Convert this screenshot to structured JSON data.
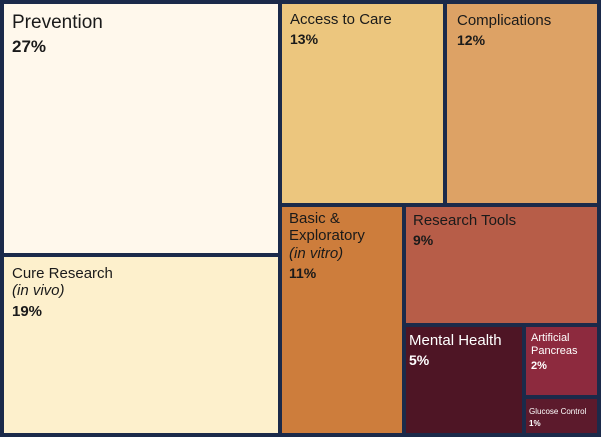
{
  "chart_data": {
    "type": "treemap",
    "title": "",
    "items": [
      {
        "name": "Prevention",
        "sub": "",
        "value": 27,
        "label": "27%",
        "color": "#fff8ec",
        "text_color": "#1a1a1a"
      },
      {
        "name": "Cure Research",
        "sub": "(in vivo)",
        "value": 19,
        "label": "19%",
        "color": "#fdf0cc",
        "text_color": "#1a1a1a"
      },
      {
        "name": "Access to Care",
        "sub": "",
        "value": 13,
        "label": "13%",
        "color": "#ecc67e",
        "text_color": "#1a1a1a"
      },
      {
        "name": "Complications",
        "sub": "",
        "value": 12,
        "label": "12%",
        "color": "#dda265",
        "text_color": "#1a1a1a"
      },
      {
        "name": "Basic & Exploratory",
        "sub": "(in vitro)",
        "value": 11,
        "label": "11%",
        "color": "#cd7d3c",
        "text_color": "#1a1a1a"
      },
      {
        "name": "Research Tools",
        "sub": "",
        "value": 9,
        "label": "9%",
        "color": "#b75d48",
        "text_color": "#1a1a1a"
      },
      {
        "name": "Mental Health",
        "sub": "",
        "value": 5,
        "label": "5%",
        "color": "#4e1525",
        "text_color": "#ffffff"
      },
      {
        "name": "Artificial Pancreas",
        "sub": "",
        "value": 2,
        "label": "2%",
        "color": "#8d2a3e",
        "text_color": "#ffffff"
      },
      {
        "name": "Glucose Control",
        "sub": "",
        "value": 1,
        "label": "1%",
        "color": "#5c1a2c",
        "text_color": "#ffffff"
      }
    ]
  }
}
